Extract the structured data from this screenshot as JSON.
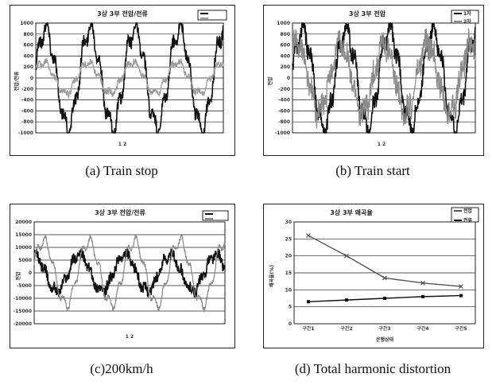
{
  "captions": {
    "a": "(a)  Train  stop",
    "b": "(b)  Train  start",
    "c": "(c)200km/h",
    "d": "(d)  Total  harmonic  distortion"
  },
  "chart_data": [
    {
      "id": "a",
      "type": "line",
      "title": "3상 3부 전압/전류",
      "xlabel": "1 2",
      "ylabel": "전압/전류",
      "ylim": [
        -1000,
        1000
      ],
      "ytick_labels": [
        "1000",
        "800",
        "600",
        "400",
        "200",
        "0",
        "-200",
        "-400",
        "-600",
        "-800",
        "-1000"
      ],
      "cycles": 4.2,
      "series": [
        {
          "name": "",
          "color": "#111111",
          "amplitude": 900,
          "phase": 0.2,
          "noise": 120
        },
        {
          "name": "",
          "color": "#9a9a9a",
          "amplitude": 280,
          "phase": 0.5,
          "noise": 60
        }
      ]
    },
    {
      "id": "b",
      "type": "line",
      "title": "3상 3부 전압",
      "xlabel": "1 2",
      "ylabel": "전압",
      "ylim": [
        -1000,
        1000
      ],
      "ytick_labels": [
        "1000",
        "800",
        "600",
        "400",
        "200",
        "0",
        "-200",
        "-400",
        "-600",
        "-800",
        "-1000"
      ],
      "cycles": 4.2,
      "series": [
        {
          "name": "1차",
          "color": "#111111",
          "amplitude": 880,
          "phase": 0.15,
          "noise": 160
        },
        {
          "name": "2차",
          "color": "#8a8a8a",
          "amplitude": 620,
          "phase": 0.9,
          "noise": 240
        }
      ]
    },
    {
      "id": "c",
      "type": "line",
      "title": "3상 3부 전압/전류",
      "xlabel": "1 2",
      "ylabel": "전압",
      "ylim": [
        -20000,
        20000
      ],
      "ytick_labels": [
        "20000",
        "15000",
        "10000",
        "5000",
        "0",
        "-5000",
        "-10000",
        "-15000",
        "-20000"
      ],
      "cycles": 4.2,
      "series": [
        {
          "name": "",
          "color": "#111111",
          "amplitude": 7000,
          "phase": 1.6,
          "noise": 2200
        },
        {
          "name": "",
          "color": "#888888",
          "amplitude": 12500,
          "phase": 0.3,
          "noise": 900
        }
      ]
    },
    {
      "id": "d",
      "type": "line",
      "title": "3상 3부 왜곡율",
      "xlabel": "운행상태",
      "ylabel": "왜곡율(%)",
      "ylim": [
        0,
        30
      ],
      "ytick_labels": [
        "30",
        "25",
        "20",
        "15",
        "10",
        "5",
        "0"
      ],
      "categories": [
        "구간1",
        "구간2",
        "구간3",
        "구간4",
        "구간5"
      ],
      "series": [
        {
          "name": "전압",
          "color": "#555555",
          "marker": "x",
          "values": [
            26.0,
            20.0,
            13.5,
            12.0,
            11.0
          ]
        },
        {
          "name": "전류",
          "color": "#111111",
          "marker": "square",
          "values": [
            6.5,
            7.0,
            7.5,
            8.0,
            8.3
          ]
        }
      ]
    }
  ]
}
